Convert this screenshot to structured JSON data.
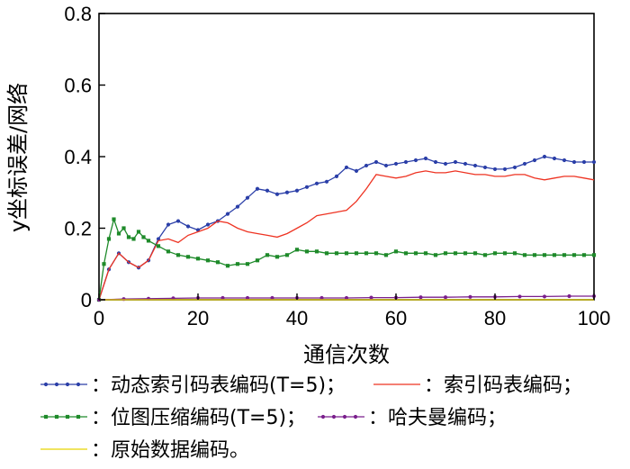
{
  "chart_data": {
    "type": "line",
    "title": "",
    "xlabel": "通信次数",
    "ylabel": "y坐标误差/网络",
    "xlim": [
      0,
      100
    ],
    "ylim": [
      0,
      0.8
    ],
    "xticks": [
      "0",
      "20",
      "40",
      "60",
      "80",
      "100"
    ],
    "yticks": [
      "0",
      "0.2",
      "0.4",
      "0.6",
      "0.8"
    ],
    "grid": false,
    "legend_position": "bottom",
    "series": [
      {
        "name": "动态索引码表编码(T=5)",
        "legend_text": "：动态索引码表编码(T=5)；",
        "color": "#2b3fa8",
        "marker": "dot",
        "x": [
          0,
          2,
          4,
          6,
          8,
          10,
          12,
          14,
          16,
          18,
          20,
          22,
          24,
          26,
          28,
          30,
          32,
          34,
          36,
          38,
          40,
          42,
          44,
          46,
          48,
          50,
          52,
          54,
          56,
          58,
          60,
          62,
          64,
          66,
          68,
          70,
          72,
          74,
          76,
          78,
          80,
          82,
          84,
          86,
          88,
          90,
          92,
          94,
          96,
          98,
          100
        ],
        "y": [
          0,
          0.085,
          0.13,
          0.105,
          0.09,
          0.11,
          0.17,
          0.21,
          0.22,
          0.205,
          0.195,
          0.21,
          0.22,
          0.24,
          0.26,
          0.285,
          0.31,
          0.305,
          0.295,
          0.3,
          0.305,
          0.315,
          0.325,
          0.33,
          0.345,
          0.37,
          0.36,
          0.375,
          0.385,
          0.375,
          0.38,
          0.385,
          0.39,
          0.395,
          0.385,
          0.38,
          0.385,
          0.38,
          0.375,
          0.37,
          0.365,
          0.365,
          0.37,
          0.38,
          0.39,
          0.4,
          0.395,
          0.39,
          0.385,
          0.385,
          0.385
        ]
      },
      {
        "name": "索引码表编码",
        "legend_text": "：索引码表编码；",
        "color": "#ee3322",
        "marker": "none",
        "x": [
          0,
          2,
          4,
          6,
          8,
          10,
          12,
          14,
          16,
          18,
          20,
          22,
          24,
          26,
          28,
          30,
          32,
          34,
          36,
          38,
          40,
          42,
          44,
          46,
          48,
          50,
          52,
          54,
          56,
          58,
          60,
          62,
          64,
          66,
          68,
          70,
          72,
          74,
          76,
          78,
          80,
          82,
          84,
          86,
          88,
          90,
          92,
          94,
          96,
          98,
          100
        ],
        "y": [
          0,
          0.085,
          0.13,
          0.105,
          0.09,
          0.11,
          0.165,
          0.17,
          0.16,
          0.18,
          0.19,
          0.2,
          0.22,
          0.215,
          0.2,
          0.19,
          0.185,
          0.18,
          0.175,
          0.185,
          0.2,
          0.215,
          0.235,
          0.24,
          0.245,
          0.25,
          0.275,
          0.31,
          0.35,
          0.345,
          0.34,
          0.345,
          0.355,
          0.36,
          0.355,
          0.355,
          0.36,
          0.355,
          0.35,
          0.35,
          0.345,
          0.345,
          0.35,
          0.35,
          0.34,
          0.335,
          0.34,
          0.345,
          0.345,
          0.34,
          0.335
        ]
      },
      {
        "name": "位图压缩编码(T=5)",
        "legend_text": "：位图压缩编码(T=5)；",
        "color": "#1e8a2a",
        "marker": "square",
        "x": [
          0,
          1,
          2,
          3,
          4,
          5,
          6,
          7,
          8,
          9,
          10,
          12,
          14,
          16,
          18,
          20,
          22,
          24,
          26,
          28,
          30,
          32,
          34,
          36,
          38,
          40,
          42,
          44,
          46,
          48,
          50,
          52,
          54,
          56,
          58,
          60,
          62,
          64,
          66,
          68,
          70,
          72,
          74,
          76,
          78,
          80,
          82,
          84,
          86,
          88,
          90,
          92,
          94,
          96,
          98,
          100
        ],
        "y": [
          0,
          0.1,
          0.17,
          0.225,
          0.185,
          0.2,
          0.175,
          0.17,
          0.19,
          0.175,
          0.165,
          0.15,
          0.135,
          0.125,
          0.12,
          0.115,
          0.11,
          0.105,
          0.095,
          0.1,
          0.1,
          0.11,
          0.125,
          0.12,
          0.125,
          0.14,
          0.135,
          0.135,
          0.13,
          0.13,
          0.13,
          0.13,
          0.13,
          0.13,
          0.125,
          0.135,
          0.13,
          0.13,
          0.13,
          0.125,
          0.13,
          0.13,
          0.13,
          0.13,
          0.125,
          0.13,
          0.13,
          0.13,
          0.125,
          0.125,
          0.125,
          0.125,
          0.125,
          0.125,
          0.125,
          0.125
        ]
      },
      {
        "name": "哈夫曼编码",
        "legend_text": "：哈夫曼编码；",
        "color": "#7a1f8c",
        "marker": "dot",
        "x": [
          0,
          5,
          10,
          15,
          20,
          25,
          30,
          35,
          40,
          45,
          50,
          55,
          60,
          65,
          70,
          75,
          80,
          85,
          90,
          95,
          100
        ],
        "y": [
          0,
          0.002,
          0.003,
          0.004,
          0.005,
          0.005,
          0.005,
          0.005,
          0.005,
          0.005,
          0.005,
          0.006,
          0.006,
          0.007,
          0.007,
          0.008,
          0.008,
          0.009,
          0.009,
          0.01,
          0.01
        ]
      },
      {
        "name": "原始数据编码",
        "legend_text": "：原始数据编码。",
        "color": "#e8d400",
        "marker": "none",
        "x": [
          0,
          20,
          40,
          60,
          80,
          100
        ],
        "y": [
          0,
          0,
          0,
          0,
          0,
          0
        ]
      }
    ]
  }
}
